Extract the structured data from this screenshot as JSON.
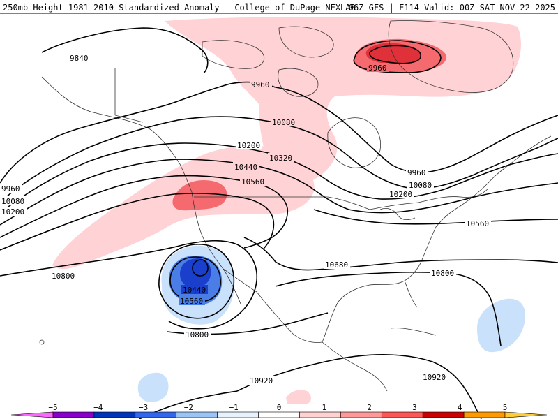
{
  "title": {
    "left": "250mb Height 1981–2010 Standardized Anomaly | College of DuPage NEXLAB",
    "right": "06Z GFS | F114 Valid: 00Z SAT NOV 22 2025"
  },
  "contour_labels": [
    {
      "id": "l9840",
      "text": "9840"
    },
    {
      "id": "l9960a",
      "text": "9960"
    },
    {
      "id": "l9960b",
      "text": "9960"
    },
    {
      "id": "l9960c",
      "text": "9960"
    },
    {
      "id": "l9960d",
      "text": "9960"
    },
    {
      "id": "l10080a",
      "text": "10080"
    },
    {
      "id": "l10080b",
      "text": "10080"
    },
    {
      "id": "l10080c",
      "text": "10080"
    },
    {
      "id": "l10200a",
      "text": "10200"
    },
    {
      "id": "l10200b",
      "text": "10200"
    },
    {
      "id": "l10200c",
      "text": "10200"
    },
    {
      "id": "l10320",
      "text": "10320"
    },
    {
      "id": "l10440a",
      "text": "10440"
    },
    {
      "id": "l10440b",
      "text": "10440"
    },
    {
      "id": "l10560a",
      "text": "10560"
    },
    {
      "id": "l10560b",
      "text": "10560"
    },
    {
      "id": "l10560c",
      "text": "10560"
    },
    {
      "id": "l10680",
      "text": "10680"
    },
    {
      "id": "l10800a",
      "text": "10800"
    },
    {
      "id": "l10800b",
      "text": "10800"
    },
    {
      "id": "l10800c",
      "text": "10800"
    },
    {
      "id": "l10920a",
      "text": "10920"
    },
    {
      "id": "l10920b",
      "text": "10920"
    }
  ],
  "colorbar": {
    "ticks": [
      "−5",
      "−4",
      "−3",
      "−2",
      "−1",
      "0",
      "1",
      "2",
      "3",
      "4",
      "5"
    ],
    "colors": [
      "#ff66ff",
      "#8800cc",
      "#0033bb",
      "#3366ee",
      "#99c4f5",
      "#e8f2ff",
      "#ffffff",
      "#ffd1d1",
      "#ff9999",
      "#ff5555",
      "#cc0000",
      "#ff9900",
      "#ffcc33"
    ]
  },
  "anomaly_colors": {
    "pos1": "#ffd2d6",
    "pos2": "#f56a6f",
    "pos3": "#e0303a",
    "neg1": "#c9e1fb",
    "neg2": "#4a7ee6",
    "neg3": "#1a3fcc"
  }
}
